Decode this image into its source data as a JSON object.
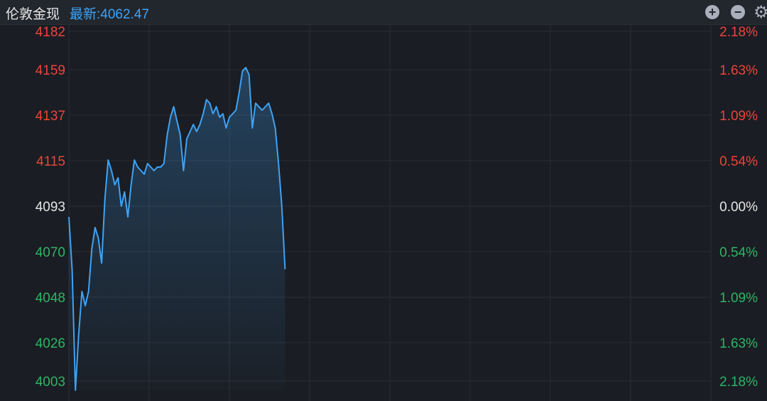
{
  "header": {
    "title": "伦敦金现",
    "latest_label": "最新:4062.47",
    "zoom_in_icon": "plus-circle-icon",
    "zoom_out_icon": "minus-circle-icon",
    "settings_icon": "gear-icon"
  },
  "colors": {
    "up": "#e8453c",
    "down": "#2fb466",
    "neutral": "#e6e6e6",
    "line": "#3ea3f5",
    "background": "#1a1d23",
    "grid": "#2a2e35"
  },
  "chart_data": {
    "type": "area",
    "title": "",
    "reference_price": 4093,
    "ylim": [
      4003,
      4182
    ],
    "grid": true,
    "left_ticks": [
      4182,
      4159,
      4137,
      4115,
      4093,
      4070,
      4048,
      4026,
      4003
    ],
    "right_ticks": [
      "2.18%",
      "1.63%",
      "1.09%",
      "0.54%",
      "0.00%",
      "0.54%",
      "1.09%",
      "1.63%",
      "2.18%"
    ],
    "series": [
      {
        "values": [
          4087.8,
          4062.1,
          4004,
          4031.1,
          4051.8,
          4044.9,
          4051.8,
          4072.4,
          4082.7,
          4077.5,
          4065.5,
          4096.4,
          4115.3,
          4110.2,
          4103.3,
          4106.7,
          4093,
          4099.9,
          4087.8,
          4103.3,
          4115.3,
          4111.9,
          4110.2,
          4108.5,
          4113.6,
          4111.9,
          4110.2,
          4111.9,
          4111.9,
          4113.6,
          4127.4,
          4136,
          4141.1,
          4134.2,
          4127.4,
          4110.2,
          4125.6,
          4129.1,
          4132.5,
          4129.1,
          4132.5,
          4137.7,
          4144.5,
          4142.8,
          4137.7,
          4141.1,
          4136,
          4137.7,
          4130.8,
          4136,
          4137.7,
          4139.4,
          4148,
          4158.3,
          4160,
          4156.6,
          4130.8,
          4142.8,
          4141.1,
          4139.4,
          4141.1,
          4142.8,
          4137.7,
          4130.8,
          4113.6,
          4093,
          4062.5
        ]
      }
    ]
  }
}
